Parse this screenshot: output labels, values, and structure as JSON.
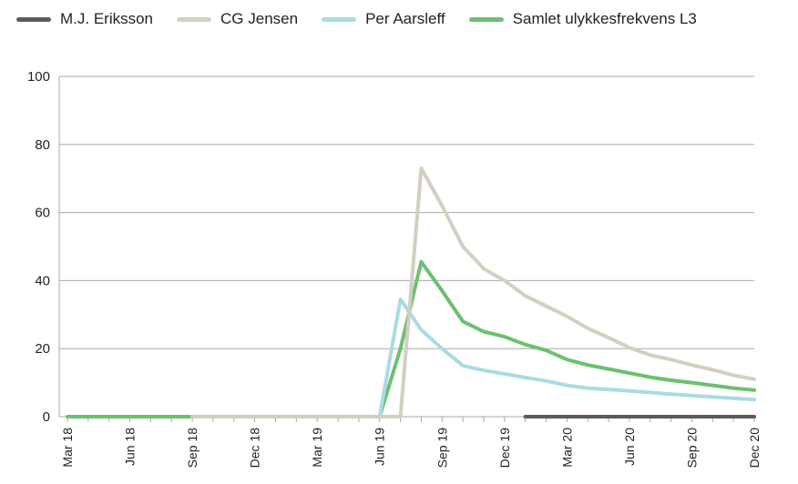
{
  "colors": {
    "M.J. Eriksson": "#5a5a5a",
    "CG Jensen": "#d3cfc1",
    "Per Aarsleff": "#a9dbe3",
    "Samlet ulykkesfrekvens L3": "#6cc070"
  },
  "chart_data": {
    "type": "line",
    "title": "",
    "xlabel": "",
    "ylabel": "",
    "ylim": [
      0,
      100
    ],
    "yticks": [
      "0",
      "20",
      "40",
      "60",
      "80",
      "100"
    ],
    "grid": "horizontal",
    "legend_position": "top",
    "x_tick_labels": [
      "Mar 18",
      "Jun 18",
      "Sep 18",
      "Dec 18",
      "Mar 19",
      "Jun 19",
      "Sep 19",
      "Dec 19",
      "Mar 20",
      "Jun 20",
      "Sep 20",
      "Dec 20"
    ],
    "x": [
      "Mar 18",
      "Apr 18",
      "May 18",
      "Jun 18",
      "Jul 18",
      "Aug 18",
      "Sep 18",
      "Oct 18",
      "Nov 18",
      "Dec 18",
      "Jan 19",
      "Feb 19",
      "Mar 19",
      "Apr 19",
      "May 19",
      "Jun 19",
      "Jul 19",
      "Aug 19",
      "Sep 19",
      "Oct 19",
      "Nov 19",
      "Dec 19",
      "Jan 20",
      "Feb 20",
      "Mar 20",
      "Apr 20",
      "May 20",
      "Jun 20",
      "Jul 20",
      "Aug 20",
      "Sep 20",
      "Oct 20",
      "Nov 20",
      "Dec 20"
    ],
    "series": [
      {
        "name": "M.J. Eriksson",
        "values": [
          null,
          null,
          null,
          null,
          null,
          null,
          null,
          null,
          null,
          null,
          null,
          null,
          null,
          null,
          null,
          null,
          null,
          null,
          null,
          null,
          null,
          null,
          0,
          0,
          0,
          0,
          0,
          0,
          0,
          0,
          0,
          0,
          0,
          0
        ]
      },
      {
        "name": "CG Jensen",
        "values": [
          null,
          null,
          null,
          null,
          null,
          null,
          0,
          0,
          0,
          0,
          0,
          0,
          0,
          0,
          0,
          0,
          0,
          73,
          62,
          50,
          43.5,
          40,
          35.5,
          32.5,
          29.5,
          26,
          23.2,
          20.3,
          18.1,
          16.8,
          15.2,
          13.8,
          12.2,
          11
        ]
      },
      {
        "name": "Per Aarsleff",
        "values": [
          null,
          null,
          null,
          null,
          null,
          null,
          null,
          null,
          null,
          null,
          null,
          null,
          null,
          null,
          null,
          0,
          34.5,
          25.5,
          20,
          15,
          13.6,
          12.6,
          11.5,
          10.5,
          9.2,
          8.4,
          8,
          7.6,
          7.1,
          6.6,
          6.2,
          5.8,
          5.4,
          5
        ]
      },
      {
        "name": "Samlet ulykkesfrekvens L3",
        "values": [
          0,
          0,
          0,
          0,
          0,
          0,
          0,
          null,
          null,
          null,
          null,
          null,
          null,
          null,
          null,
          0,
          20,
          45.5,
          37,
          28,
          25,
          23.5,
          21.2,
          19.5,
          16.8,
          15.2,
          14,
          12.8,
          11.6,
          10.7,
          10,
          9.2,
          8.4,
          7.8
        ]
      }
    ]
  }
}
